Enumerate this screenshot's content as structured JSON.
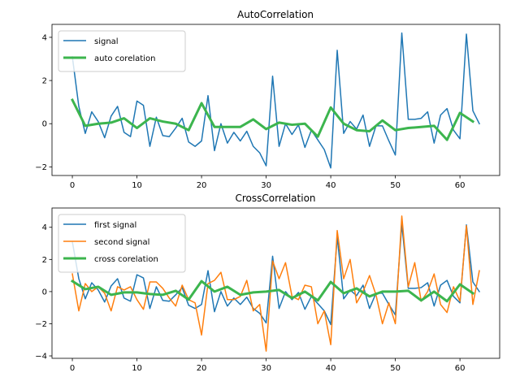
{
  "chart_data": [
    {
      "type": "line",
      "title": "AutoCorrelation",
      "xlabel": "",
      "ylabel": "",
      "xlim": [
        -3.15,
        66.15
      ],
      "ylim": [
        -2.4,
        4.6
      ],
      "xticks": [
        0,
        10,
        20,
        30,
        40,
        50,
        60
      ],
      "yticks": [
        -2,
        0,
        2,
        4
      ],
      "grid": false,
      "legend_position": "upper-left",
      "series": [
        {
          "name": "signal",
          "color": "#1f77b4",
          "linewidth": 1.5,
          "x": [
            0,
            1,
            2,
            3,
            4,
            5,
            6,
            7,
            8,
            9,
            10,
            11,
            12,
            13,
            14,
            15,
            16,
            17,
            18,
            19,
            20,
            21,
            22,
            23,
            24,
            25,
            26,
            27,
            28,
            29,
            30,
            31,
            32,
            33,
            34,
            35,
            36,
            37,
            38,
            39,
            40,
            41,
            42,
            43,
            44,
            45,
            46,
            47,
            48,
            49,
            50,
            51,
            52,
            53,
            54,
            55,
            56,
            57,
            58,
            59,
            60,
            61,
            62,
            63
          ],
          "y": [
            3.1,
            0.8,
            -0.45,
            0.55,
            0.1,
            -0.65,
            0.35,
            0.8,
            -0.4,
            -0.6,
            1.05,
            0.85,
            -1.05,
            0.3,
            -0.55,
            -0.6,
            -0.2,
            0.25,
            -0.85,
            -1.05,
            -0.8,
            1.3,
            -1.25,
            0.0,
            -0.9,
            -0.4,
            -0.8,
            -0.35,
            -1.05,
            -1.35,
            -1.95,
            2.2,
            -1.05,
            0.0,
            -0.5,
            -0.05,
            -1.1,
            -0.3,
            -0.75,
            -1.2,
            -2.05,
            3.4,
            -0.45,
            0.1,
            -0.25,
            0.4,
            -1.05,
            -0.1,
            -0.1,
            -0.8,
            -1.45,
            4.2,
            0.2,
            0.2,
            0.25,
            0.55,
            -0.9,
            0.4,
            0.7,
            -0.3,
            -0.7,
            4.15,
            0.6,
            0.0
          ]
        },
        {
          "name": "auto corelation",
          "color": "#3cb54e",
          "linewidth": 3,
          "x": [
            0,
            2,
            4,
            6,
            8,
            10,
            12,
            14,
            16,
            18,
            20,
            22,
            24,
            26,
            28,
            30,
            32,
            34,
            36,
            38,
            40,
            42,
            44,
            46,
            48,
            50,
            52,
            54,
            56,
            58,
            60,
            62
          ],
          "y": [
            1.1,
            -0.1,
            0.0,
            0.05,
            0.25,
            -0.2,
            0.25,
            0.1,
            0.0,
            -0.3,
            0.95,
            -0.15,
            -0.15,
            -0.15,
            0.2,
            -0.25,
            0.05,
            -0.05,
            0.0,
            -0.6,
            0.75,
            0.0,
            -0.3,
            -0.35,
            0.15,
            -0.3,
            -0.2,
            -0.15,
            -0.1,
            -0.75,
            0.5,
            0.1
          ]
        }
      ]
    },
    {
      "type": "line",
      "title": "CrossCorrelation",
      "xlabel": "",
      "ylabel": "",
      "xlim": [
        -3.15,
        66.15
      ],
      "ylim": [
        -4.15,
        5.2
      ],
      "xticks": [
        0,
        10,
        20,
        30,
        40,
        50,
        60
      ],
      "yticks": [
        -4,
        -2,
        0,
        2,
        4
      ],
      "grid": false,
      "legend_position": "upper-left",
      "series": [
        {
          "name": "first signal",
          "color": "#1f77b4",
          "linewidth": 1.5,
          "x": [
            0,
            1,
            2,
            3,
            4,
            5,
            6,
            7,
            8,
            9,
            10,
            11,
            12,
            13,
            14,
            15,
            16,
            17,
            18,
            19,
            20,
            21,
            22,
            23,
            24,
            25,
            26,
            27,
            28,
            29,
            30,
            31,
            32,
            33,
            34,
            35,
            36,
            37,
            38,
            39,
            40,
            41,
            42,
            43,
            44,
            45,
            46,
            47,
            48,
            49,
            50,
            51,
            52,
            53,
            54,
            55,
            56,
            57,
            58,
            59,
            60,
            61,
            62,
            63
          ],
          "y": [
            3.1,
            0.8,
            -0.45,
            0.55,
            0.1,
            -0.65,
            0.35,
            0.8,
            -0.4,
            -0.6,
            1.05,
            0.85,
            -1.05,
            0.3,
            -0.55,
            -0.6,
            -0.2,
            0.25,
            -0.85,
            -1.05,
            -0.8,
            1.3,
            -1.25,
            0.0,
            -0.9,
            -0.4,
            -0.8,
            -0.35,
            -1.05,
            -1.35,
            -1.95,
            2.2,
            -1.05,
            0.0,
            -0.5,
            -0.05,
            -1.1,
            -0.3,
            -0.75,
            -1.2,
            -2.05,
            3.4,
            -0.45,
            0.1,
            -0.25,
            0.4,
            -1.05,
            -0.1,
            -0.1,
            -0.8,
            -1.45,
            4.2,
            0.2,
            0.2,
            0.25,
            0.55,
            -0.9,
            0.4,
            0.7,
            -0.3,
            -0.7,
            4.15,
            0.6,
            0.0
          ]
        },
        {
          "name": "second signal",
          "color": "#ff7f0e",
          "linewidth": 1.5,
          "x": [
            0,
            1,
            2,
            3,
            4,
            5,
            6,
            7,
            8,
            9,
            10,
            11,
            12,
            13,
            14,
            15,
            16,
            17,
            18,
            19,
            20,
            21,
            22,
            23,
            24,
            25,
            26,
            27,
            28,
            29,
            30,
            31,
            32,
            33,
            34,
            35,
            36,
            37,
            38,
            39,
            40,
            41,
            42,
            43,
            44,
            45,
            46,
            47,
            48,
            49,
            50,
            51,
            52,
            53,
            54,
            55,
            56,
            57,
            58,
            59,
            60,
            61,
            62,
            63
          ],
          "y": [
            1.1,
            -1.2,
            0.5,
            0.0,
            0.3,
            -0.1,
            -1.2,
            0.3,
            0.1,
            0.3,
            -0.5,
            -1.1,
            0.6,
            0.6,
            0.2,
            -0.4,
            -0.9,
            0.4,
            -0.5,
            -0.7,
            -2.7,
            0.5,
            0.7,
            1.2,
            -0.5,
            -0.5,
            -0.3,
            0.7,
            -1.2,
            -0.8,
            -3.7,
            1.9,
            0.8,
            1.8,
            -0.3,
            -0.5,
            0.4,
            0.3,
            -2.0,
            -1.2,
            -3.3,
            3.8,
            0.8,
            2.0,
            -0.7,
            0.0,
            1.0,
            -0.2,
            -2.0,
            -0.7,
            -2.0,
            4.7,
            0.3,
            1.8,
            -0.6,
            0.0,
            1.1,
            -0.8,
            -1.3,
            0.3,
            -0.6,
            4.1,
            -0.8,
            1.3
          ]
        },
        {
          "name": "cross corelation",
          "color": "#3cb54e",
          "linewidth": 3,
          "x": [
            0,
            2,
            4,
            6,
            8,
            10,
            12,
            14,
            16,
            18,
            20,
            22,
            24,
            26,
            28,
            30,
            32,
            34,
            36,
            38,
            40,
            42,
            44,
            46,
            48,
            50,
            52,
            54,
            56,
            58,
            60,
            62
          ],
          "y": [
            0.65,
            0.15,
            0.3,
            -0.2,
            -0.05,
            -0.05,
            -0.15,
            -0.2,
            0.05,
            -0.5,
            0.65,
            0.0,
            0.3,
            -0.2,
            -0.05,
            0.0,
            0.1,
            -0.4,
            0.0,
            -0.55,
            0.6,
            -0.1,
            0.2,
            -0.3,
            0.0,
            0.0,
            0.05,
            -0.55,
            0.0,
            -0.6,
            0.45,
            -0.1
          ]
        }
      ]
    }
  ]
}
